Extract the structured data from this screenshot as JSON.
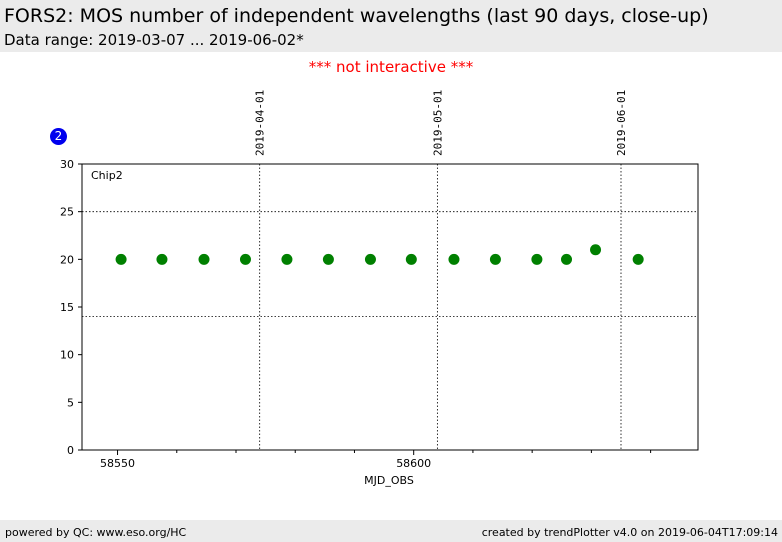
{
  "header": {
    "title": "FORS2: MOS number of independent wavelengths (last 90 days, close-up)",
    "subtitle": "Data range: 2019-03-07 ... 2019-06-02*"
  },
  "notice": "*** not interactive ***",
  "badge": "2",
  "footer": {
    "left": "powered by QC: www.eso.org/HC",
    "right": "created by trendPlotter v4.0 on 2019-06-04T17:09:14"
  },
  "colors": {
    "marker": "#008000",
    "badge": "#0000ee",
    "notice": "#ff0000",
    "header_bg": "#ebebeb"
  },
  "chart_data": {
    "type": "scatter",
    "panel_label": "Chip2",
    "xlabel": "MJD_OBS",
    "ylabel": "",
    "xlim": [
      58544,
      58648
    ],
    "ylim": [
      0,
      30
    ],
    "x_ticks": [
      58550,
      58600
    ],
    "y_ticks": [
      0,
      5,
      10,
      15,
      20,
      25,
      30
    ],
    "date_markers": [
      {
        "label": "2019-04-01",
        "x": 58574
      },
      {
        "label": "2019-05-01",
        "x": 58604
      },
      {
        "label": "2019-06-01",
        "x": 58635
      }
    ],
    "threshold_lines": [
      25,
      14
    ],
    "grid": false,
    "series": [
      {
        "x": [
          58550.6,
          58557.5,
          58564.6,
          58571.6,
          58578.6,
          58585.6,
          58592.7,
          58599.6,
          58606.8,
          58613.8,
          58620.8,
          58625.8,
          58630.7,
          58637.9
        ],
        "y": [
          20,
          20,
          20,
          20,
          20,
          20,
          20,
          20,
          20,
          20,
          20,
          20,
          21,
          20
        ]
      }
    ]
  }
}
